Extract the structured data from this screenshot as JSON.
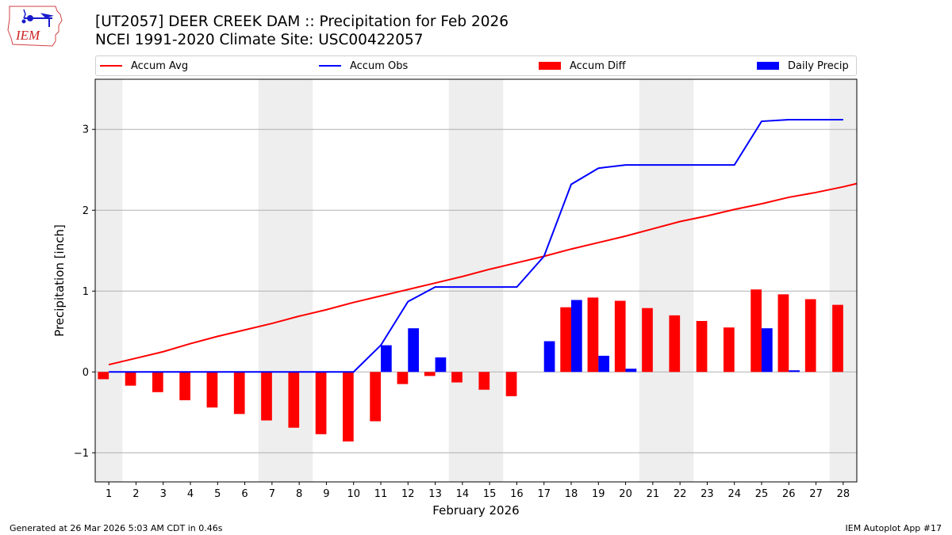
{
  "header": {
    "logo_text": "IEM",
    "title_line1": "[UT2057] DEER CREEK DAM :: Precipitation for Feb 2026",
    "title_line2": "NCEI 1991-2020 Climate Site: USC00422057"
  },
  "footer": {
    "generated": "Generated at 26 Mar 2026 5:03 AM CDT in 0.46s",
    "app": "IEM Autoplot App #17"
  },
  "colors": {
    "accum_avg": "#ff0000",
    "accum_obs": "#0000ff",
    "accum_diff": "#ff0000",
    "daily_precip": "#0000ff",
    "weekend_shade": "#eeeeee",
    "grid": "#b0b0b0"
  },
  "chart_data": {
    "type": "bar",
    "title": "[UT2057] DEER CREEK DAM :: Precipitation for Feb 2026",
    "subtitle": "NCEI 1991-2020 Climate Site: USC00422057",
    "xlabel": "February 2026",
    "ylabel": "Precipitation [inch]",
    "xlim": [
      0.5,
      28.5
    ],
    "ylim": [
      -1.36,
      3.62
    ],
    "yticks": [
      -1,
      0,
      1,
      2,
      3
    ],
    "ytick_labels": [
      "−1",
      "0",
      "1",
      "2",
      "3"
    ],
    "grid": "horizontal",
    "legend_position": "top",
    "categories": [
      1,
      2,
      3,
      4,
      5,
      6,
      7,
      8,
      9,
      10,
      11,
      12,
      13,
      14,
      15,
      16,
      17,
      18,
      19,
      20,
      21,
      22,
      23,
      24,
      25,
      26,
      27,
      28
    ],
    "x_tick_labels": [
      "1",
      "2",
      "3",
      "4",
      "5",
      "6",
      "7",
      "8",
      "9",
      "10",
      "11",
      "12",
      "13",
      "14",
      "15",
      "16",
      "17",
      "18",
      "19",
      "20",
      "21",
      "22",
      "23",
      "24",
      "25",
      "26",
      "27",
      "28"
    ],
    "weekend_days": [
      1,
      7,
      8,
      14,
      15,
      21,
      22,
      28
    ],
    "series": [
      {
        "name": "Accum Avg",
        "kind": "line",
        "values": [
          0.09,
          0.17,
          0.25,
          0.35,
          0.44,
          0.52,
          0.6,
          0.69,
          0.77,
          0.86,
          0.94,
          1.02,
          1.1,
          1.18,
          1.27,
          1.35,
          1.43,
          1.52,
          1.6,
          1.68,
          1.77,
          1.86,
          1.93,
          2.01,
          2.08,
          2.16,
          2.22,
          2.29
        ],
        "extends_to_right_edge": 2.33
      },
      {
        "name": "Accum Obs",
        "kind": "line",
        "values": [
          0,
          0,
          0,
          0,
          0,
          0,
          0,
          0,
          0,
          0,
          0.33,
          0.87,
          1.05,
          1.05,
          1.05,
          1.05,
          1.43,
          2.32,
          2.52,
          2.56,
          2.56,
          2.56,
          2.56,
          2.56,
          3.1,
          3.12,
          3.12,
          3.12
        ]
      },
      {
        "name": "Accum Diff",
        "kind": "bar",
        "values": [
          -0.09,
          -0.17,
          -0.25,
          -0.35,
          -0.44,
          -0.52,
          -0.6,
          -0.69,
          -0.77,
          -0.86,
          -0.61,
          -0.15,
          -0.05,
          -0.13,
          -0.22,
          -0.3,
          0.0,
          0.8,
          0.92,
          0.88,
          0.79,
          0.7,
          0.63,
          0.55,
          1.02,
          0.96,
          0.9,
          0.83
        ]
      },
      {
        "name": "Daily Precip",
        "kind": "bar",
        "values": [
          0,
          0,
          0,
          0,
          0,
          0,
          0,
          0,
          0,
          0,
          0.33,
          0.54,
          0.18,
          0,
          0,
          0,
          0.38,
          0.89,
          0.2,
          0.04,
          0,
          0,
          0,
          0,
          0.54,
          0.02,
          0,
          0
        ]
      }
    ]
  }
}
